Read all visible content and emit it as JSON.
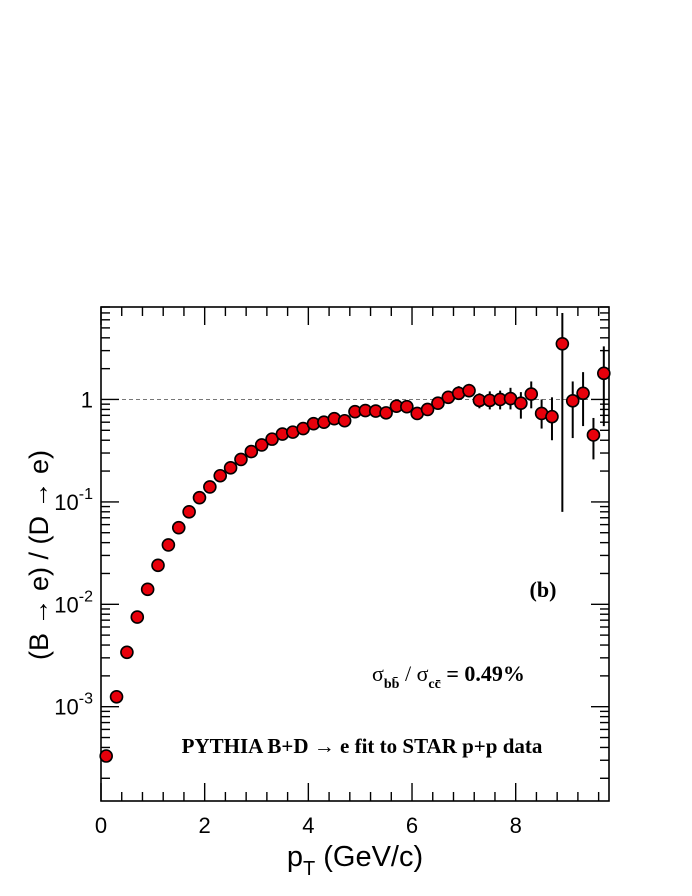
{
  "chart_data": {
    "type": "scatter",
    "title": "",
    "xlabel_main": "p",
    "xlabel_sub": "T",
    "xlabel_rest": " (GeV/c)",
    "ylabel": "(B → e) / (D → e)",
    "xlim": [
      0,
      9.8
    ],
    "ylim": [
      0.00012,
      8
    ],
    "yscale": "log",
    "x_ticks": [
      "0",
      "2",
      "4",
      "6",
      "8"
    ],
    "y_ticks": [
      {
        "base": "10",
        "exp": "-3"
      },
      {
        "base": "10",
        "exp": "-2"
      },
      {
        "base": "10",
        "exp": "-1"
      },
      {
        "base": "1",
        "exp": ""
      }
    ],
    "reference_line": 1,
    "marker_color": "#e8000b",
    "panel_label": "(b)",
    "annotation_ratio": {
      "sigma": "σ",
      "num_sub": "bb̄",
      "sep": " / ",
      "den_sub": "cc̄",
      "value": " = 0.49%"
    },
    "annotation_model": "PYTHIA B+D → e fit to STAR p+p data",
    "series": [
      {
        "x": [
          0.1,
          0.3,
          0.5,
          0.7,
          0.9,
          1.1,
          1.3,
          1.5,
          1.7,
          1.9,
          2.1,
          2.3,
          2.5,
          2.7,
          2.9,
          3.1,
          3.3,
          3.5,
          3.7,
          3.9,
          4.1,
          4.3,
          4.5,
          4.7,
          4.9,
          5.1,
          5.3,
          5.5,
          5.7,
          5.9,
          6.1,
          6.3,
          6.5,
          6.7,
          6.9,
          7.1,
          7.3,
          7.5,
          7.7,
          7.9,
          8.1,
          8.3,
          8.5,
          8.7,
          8.9,
          9.1,
          9.3,
          9.5,
          9.7
        ],
        "y": [
          0.00033,
          0.00125,
          0.0034,
          0.0075,
          0.014,
          0.024,
          0.038,
          0.056,
          0.08,
          0.11,
          0.14,
          0.18,
          0.215,
          0.26,
          0.31,
          0.36,
          0.41,
          0.46,
          0.48,
          0.52,
          0.58,
          0.6,
          0.65,
          0.62,
          0.76,
          0.78,
          0.77,
          0.74,
          0.86,
          0.85,
          0.73,
          0.8,
          0.92,
          1.05,
          1.15,
          1.22,
          0.98,
          0.98,
          1.0,
          1.02,
          0.92,
          1.13,
          0.73,
          0.68,
          3.5,
          0.97,
          1.15,
          0.45,
          1.8
        ],
        "y_low": [
          0.00033,
          0.00125,
          0.0034,
          0.0075,
          0.014,
          0.024,
          0.038,
          0.056,
          0.08,
          0.11,
          0.14,
          0.18,
          0.215,
          0.26,
          0.31,
          0.36,
          0.41,
          0.46,
          0.48,
          0.52,
          0.58,
          0.6,
          0.65,
          0.62,
          0.76,
          0.78,
          0.77,
          0.74,
          0.86,
          0.85,
          0.73,
          0.8,
          0.85,
          0.93,
          1.0,
          1.05,
          0.82,
          0.8,
          0.8,
          0.8,
          0.65,
          0.82,
          0.52,
          0.4,
          0.08,
          0.42,
          0.55,
          0.26,
          0.55
        ],
        "y_high": [
          0.00033,
          0.00125,
          0.0034,
          0.0075,
          0.014,
          0.024,
          0.038,
          0.056,
          0.08,
          0.11,
          0.14,
          0.18,
          0.215,
          0.26,
          0.31,
          0.36,
          0.41,
          0.46,
          0.48,
          0.52,
          0.58,
          0.6,
          0.65,
          0.62,
          0.76,
          0.78,
          0.77,
          0.74,
          0.86,
          0.85,
          0.73,
          0.8,
          1.0,
          1.18,
          1.35,
          1.42,
          1.15,
          1.2,
          1.22,
          1.3,
          1.18,
          1.5,
          1.0,
          1.05,
          7.0,
          1.5,
          1.85,
          0.66,
          3.3
        ]
      }
    ]
  }
}
